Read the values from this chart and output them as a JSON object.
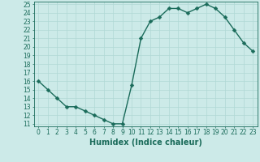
{
  "x": [
    0,
    1,
    2,
    3,
    4,
    5,
    6,
    7,
    8,
    9,
    10,
    11,
    12,
    13,
    14,
    15,
    16,
    17,
    18,
    19,
    20,
    21,
    22,
    23
  ],
  "y": [
    16,
    15,
    14,
    13,
    13,
    12.5,
    12,
    11.5,
    11,
    11,
    15.5,
    21,
    23,
    23.5,
    24.5,
    24.5,
    24,
    24.5,
    25,
    24.5,
    23.5,
    22,
    20.5,
    19.5
  ],
  "title": "",
  "xlabel": "Humidex (Indice chaleur)",
  "ylabel": "",
  "xlim": [
    -0.5,
    23.5
  ],
  "ylim": [
    10.7,
    25.3
  ],
  "yticks": [
    11,
    12,
    13,
    14,
    15,
    16,
    17,
    18,
    19,
    20,
    21,
    22,
    23,
    24,
    25
  ],
  "xticks": [
    0,
    1,
    2,
    3,
    4,
    5,
    6,
    7,
    8,
    9,
    10,
    11,
    12,
    13,
    14,
    15,
    16,
    17,
    18,
    19,
    20,
    21,
    22,
    23
  ],
  "line_color": "#1a6b5a",
  "marker_color": "#1a6b5a",
  "bg_color": "#cceae8",
  "grid_color": "#b0d8d5",
  "tick_fontsize": 5.5,
  "xlabel_fontsize": 7,
  "marker_size": 2.5,
  "line_width": 1.0
}
